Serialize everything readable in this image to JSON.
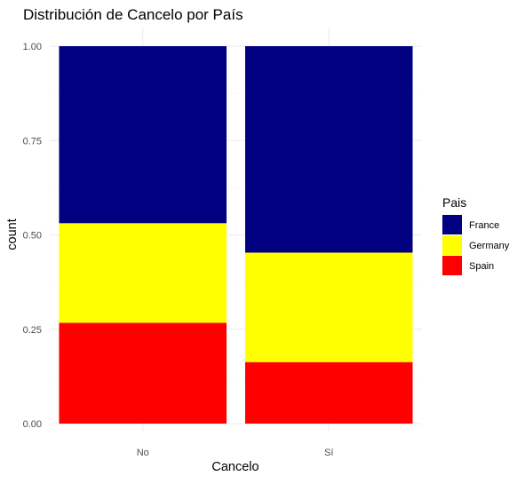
{
  "chart_data": {
    "type": "bar",
    "stacked": true,
    "position": "fill",
    "title": "Distribución de Cancelo por País",
    "xlabel": "Cancelo",
    "ylabel": "count",
    "categories": [
      "No",
      "Sí"
    ],
    "ylim": [
      0,
      1
    ],
    "yticks": [
      "0.00",
      "0.25",
      "0.50",
      "0.75",
      "1.00"
    ],
    "grid": true,
    "legend": {
      "title": "Pais",
      "placement": "right"
    },
    "series": [
      {
        "name": "Spain",
        "color": "#FF0000",
        "values": [
          0.267,
          0.163
        ]
      },
      {
        "name": "Germany",
        "color": "#FFFF00",
        "values": [
          0.264,
          0.29
        ]
      },
      {
        "name": "France",
        "color": "#000080",
        "values": [
          0.469,
          0.547
        ]
      }
    ],
    "legend_order": [
      "France",
      "Germany",
      "Spain"
    ]
  }
}
